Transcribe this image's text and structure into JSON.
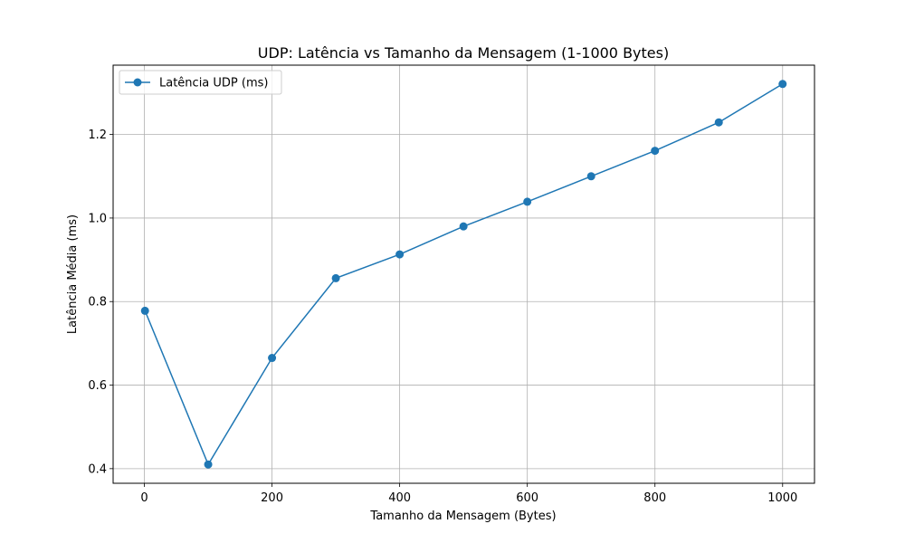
{
  "chart_data": {
    "type": "line",
    "title": "UDP: Latência vs Tamanho da Mensagem (1-1000 Bytes)",
    "xlabel": "Tamanho da Mensagem (Bytes)",
    "ylabel": "Latência Média (ms)",
    "x": [
      1,
      100,
      200,
      300,
      400,
      500,
      600,
      700,
      800,
      900,
      1000
    ],
    "series": [
      {
        "name": "Latência UDP (ms)",
        "color": "#1f77b4",
        "marker": "circle",
        "values": [
          0.778,
          0.41,
          0.665,
          0.856,
          0.913,
          0.98,
          1.039,
          1.1,
          1.161,
          1.229,
          1.321
        ]
      }
    ],
    "xlim": [
      -48.95,
      1049.95
    ],
    "ylim": [
      0.365,
      1.366
    ],
    "xticks": [
      0,
      200,
      400,
      600,
      800,
      1000
    ],
    "yticks": [
      0.4,
      0.6,
      0.8,
      1.0,
      1.2
    ],
    "xtick_labels": [
      "0",
      "200",
      "400",
      "600",
      "800",
      "1000"
    ],
    "ytick_labels": [
      "0.4",
      "0.6",
      "0.8",
      "1.0",
      "1.2"
    ],
    "grid": true,
    "legend_position": "top-left"
  }
}
